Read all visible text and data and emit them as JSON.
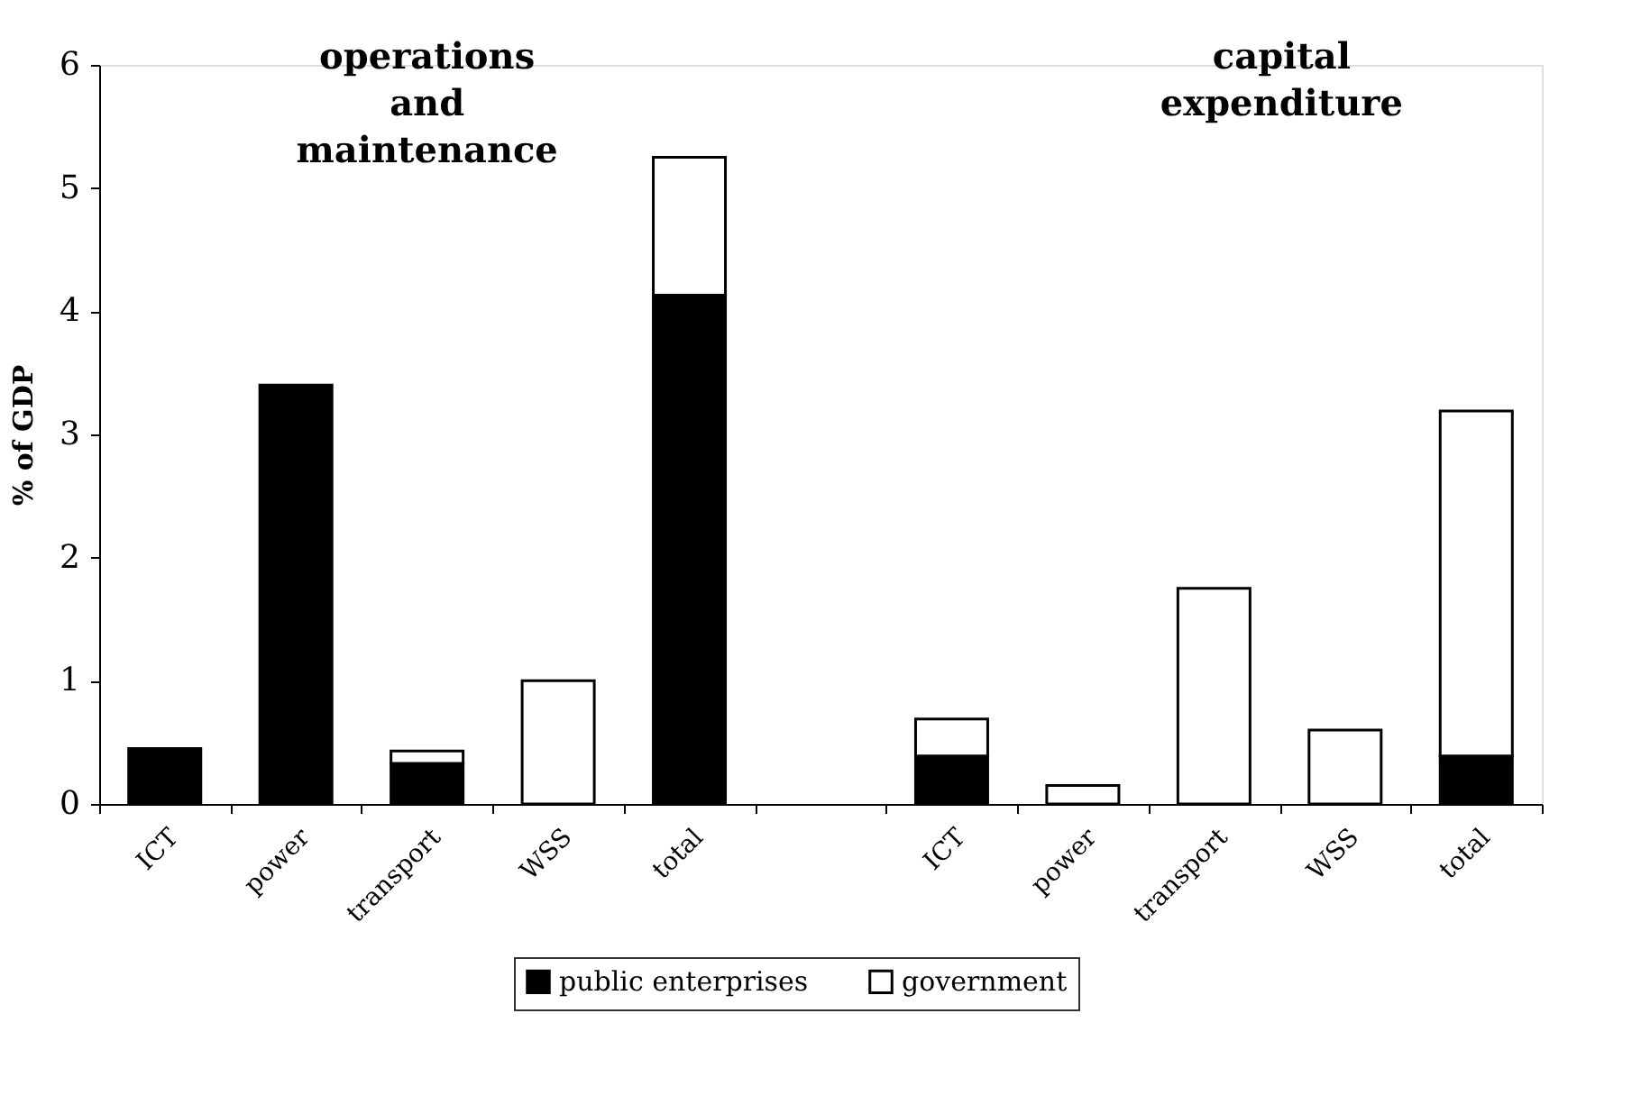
{
  "chart_data": {
    "type": "bar",
    "stacked": true,
    "ylabel": "% of GDP",
    "categories": [
      "ICT",
      "power",
      "transport",
      "WSS",
      "total",
      null,
      "ICT",
      "power",
      "transport",
      "WSS",
      "total"
    ],
    "series": [
      {
        "name": "public enterprises",
        "color": "#000000",
        "values": [
          0.45,
          3.4,
          0.33,
          0,
          4.13,
          null,
          0.39,
          0,
          0,
          0,
          0.39
        ]
      },
      {
        "name": "government",
        "color": "#ffffff",
        "values": [
          0,
          0,
          0.1,
          1.0,
          1.12,
          null,
          0.3,
          0.15,
          1.75,
          0.6,
          2.8
        ]
      }
    ],
    "ylim": [
      0,
      6
    ],
    "yticks": [
      0,
      1,
      2,
      3,
      4,
      5,
      6
    ],
    "grid": false,
    "legend": "bottom",
    "annotations": [
      "operations and maintenance",
      "capital expenditure"
    ]
  }
}
